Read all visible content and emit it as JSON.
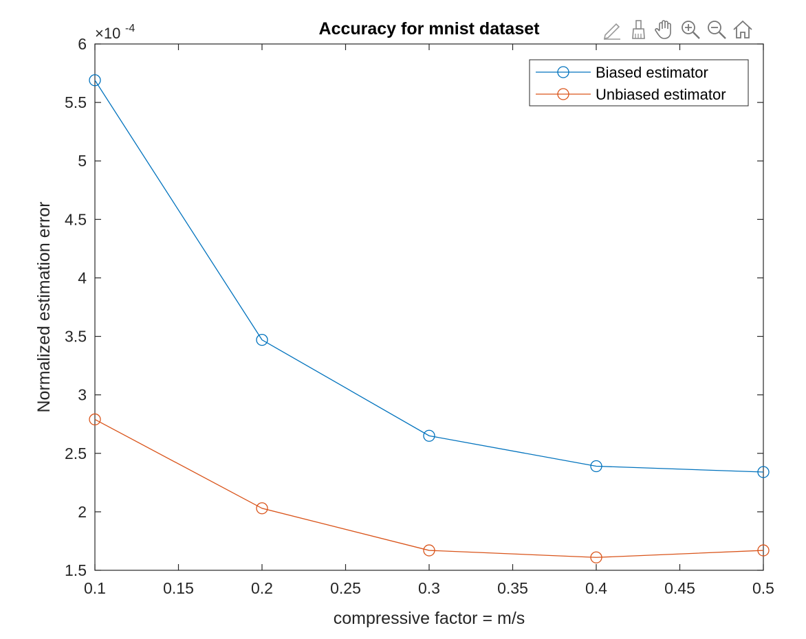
{
  "toolbar": {
    "icons": [
      "edit-data-tip-icon",
      "brush-icon",
      "pan-hand-icon",
      "zoom-in-icon",
      "zoom-out-icon",
      "home-icon"
    ]
  },
  "chart_data": {
    "type": "line",
    "title": "Accuracy for mnist dataset",
    "xlabel": "compressive factor = m/s",
    "ylabel": "Normalized estimation error",
    "y_exponent_label": "×10",
    "y_exponent_power": "-4",
    "xlim": [
      0.1,
      0.5
    ],
    "ylim": [
      1.5,
      6
    ],
    "x_ticks": [
      0.1,
      0.15,
      0.2,
      0.25,
      0.3,
      0.35,
      0.4,
      0.45,
      0.5
    ],
    "x_tick_labels": [
      "0.1",
      "0.15",
      "0.2",
      "0.25",
      "0.3",
      "0.35",
      "0.4",
      "0.45",
      "0.5"
    ],
    "y_ticks": [
      1.5,
      2,
      2.5,
      3,
      3.5,
      4,
      4.5,
      5,
      5.5,
      6
    ],
    "y_tick_labels": [
      "1.5",
      "2",
      "2.5",
      "3",
      "3.5",
      "4",
      "4.5",
      "5",
      "5.5",
      "6"
    ],
    "grid": false,
    "legend_position": "top-right",
    "x": [
      0.1,
      0.2,
      0.3,
      0.4,
      0.5
    ],
    "series": [
      {
        "name": "Biased estimator",
        "color": "#0072BD",
        "marker": "circle",
        "values": [
          5.69,
          3.47,
          2.65,
          2.39,
          2.34
        ]
      },
      {
        "name": "Unbiased estimator",
        "color": "#D95319",
        "marker": "circle",
        "values": [
          2.79,
          2.03,
          1.67,
          1.61,
          1.67
        ]
      }
    ]
  }
}
